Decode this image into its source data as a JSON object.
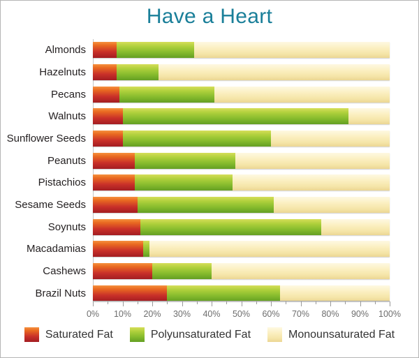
{
  "title": {
    "text": "Have a Heart",
    "color": "#1A7F99"
  },
  "chart_data": {
    "type": "bar",
    "orientation": "horizontal",
    "stacked": true,
    "grid": false,
    "legend_position": "bottom",
    "categories": [
      "Almonds",
      "Hazelnuts",
      "Pecans",
      "Walnuts",
      "Sunflower Seeds",
      "Peanuts",
      "Pistachios",
      "Sesame Seeds",
      "Soynuts",
      "Macadamias",
      "Cashews",
      "Brazil Nuts"
    ],
    "series": [
      {
        "name": "Saturated Fat",
        "key": "saturated-fat",
        "color": "#C8302A",
        "gradient": [
          "#F5913F",
          "#E96A21 22%",
          "#C93029 62%",
          "#A31D22"
        ],
        "values": [
          8,
          8,
          9,
          10,
          10,
          14,
          14,
          15,
          16,
          17,
          20,
          25
        ]
      },
      {
        "name": "Polyunsaturated Fat",
        "key": "polyunsaturated-fat",
        "color": "#8CBF2F",
        "gradient": [
          "#D6DE5A",
          "#AFD03C 28%",
          "#86BB2D 65%",
          "#649F23"
        ],
        "values": [
          26,
          14,
          32,
          76,
          50,
          34,
          33,
          46,
          61,
          2,
          20,
          38
        ]
      },
      {
        "name": "Monounsaturated Fat",
        "key": "monounsaturated-fat",
        "color": "#F7ECBB",
        "gradient": [
          "#FEF9E2",
          "#FBEFC0 40%",
          "#F5E5A8 75%",
          "#EBD693"
        ],
        "values": [
          66,
          78,
          59,
          14,
          40,
          52,
          53,
          39,
          23,
          81,
          60,
          37
        ]
      }
    ],
    "x_axis": {
      "min": 0,
      "max": 100,
      "minor_step": 5,
      "major_step": 10,
      "ticks": [
        "0%",
        "10%",
        "20%",
        "30%",
        "40%",
        "50%",
        "60%",
        "70%",
        "80%",
        "90%",
        "100%"
      ]
    },
    "xlabel": "",
    "ylabel": ""
  }
}
